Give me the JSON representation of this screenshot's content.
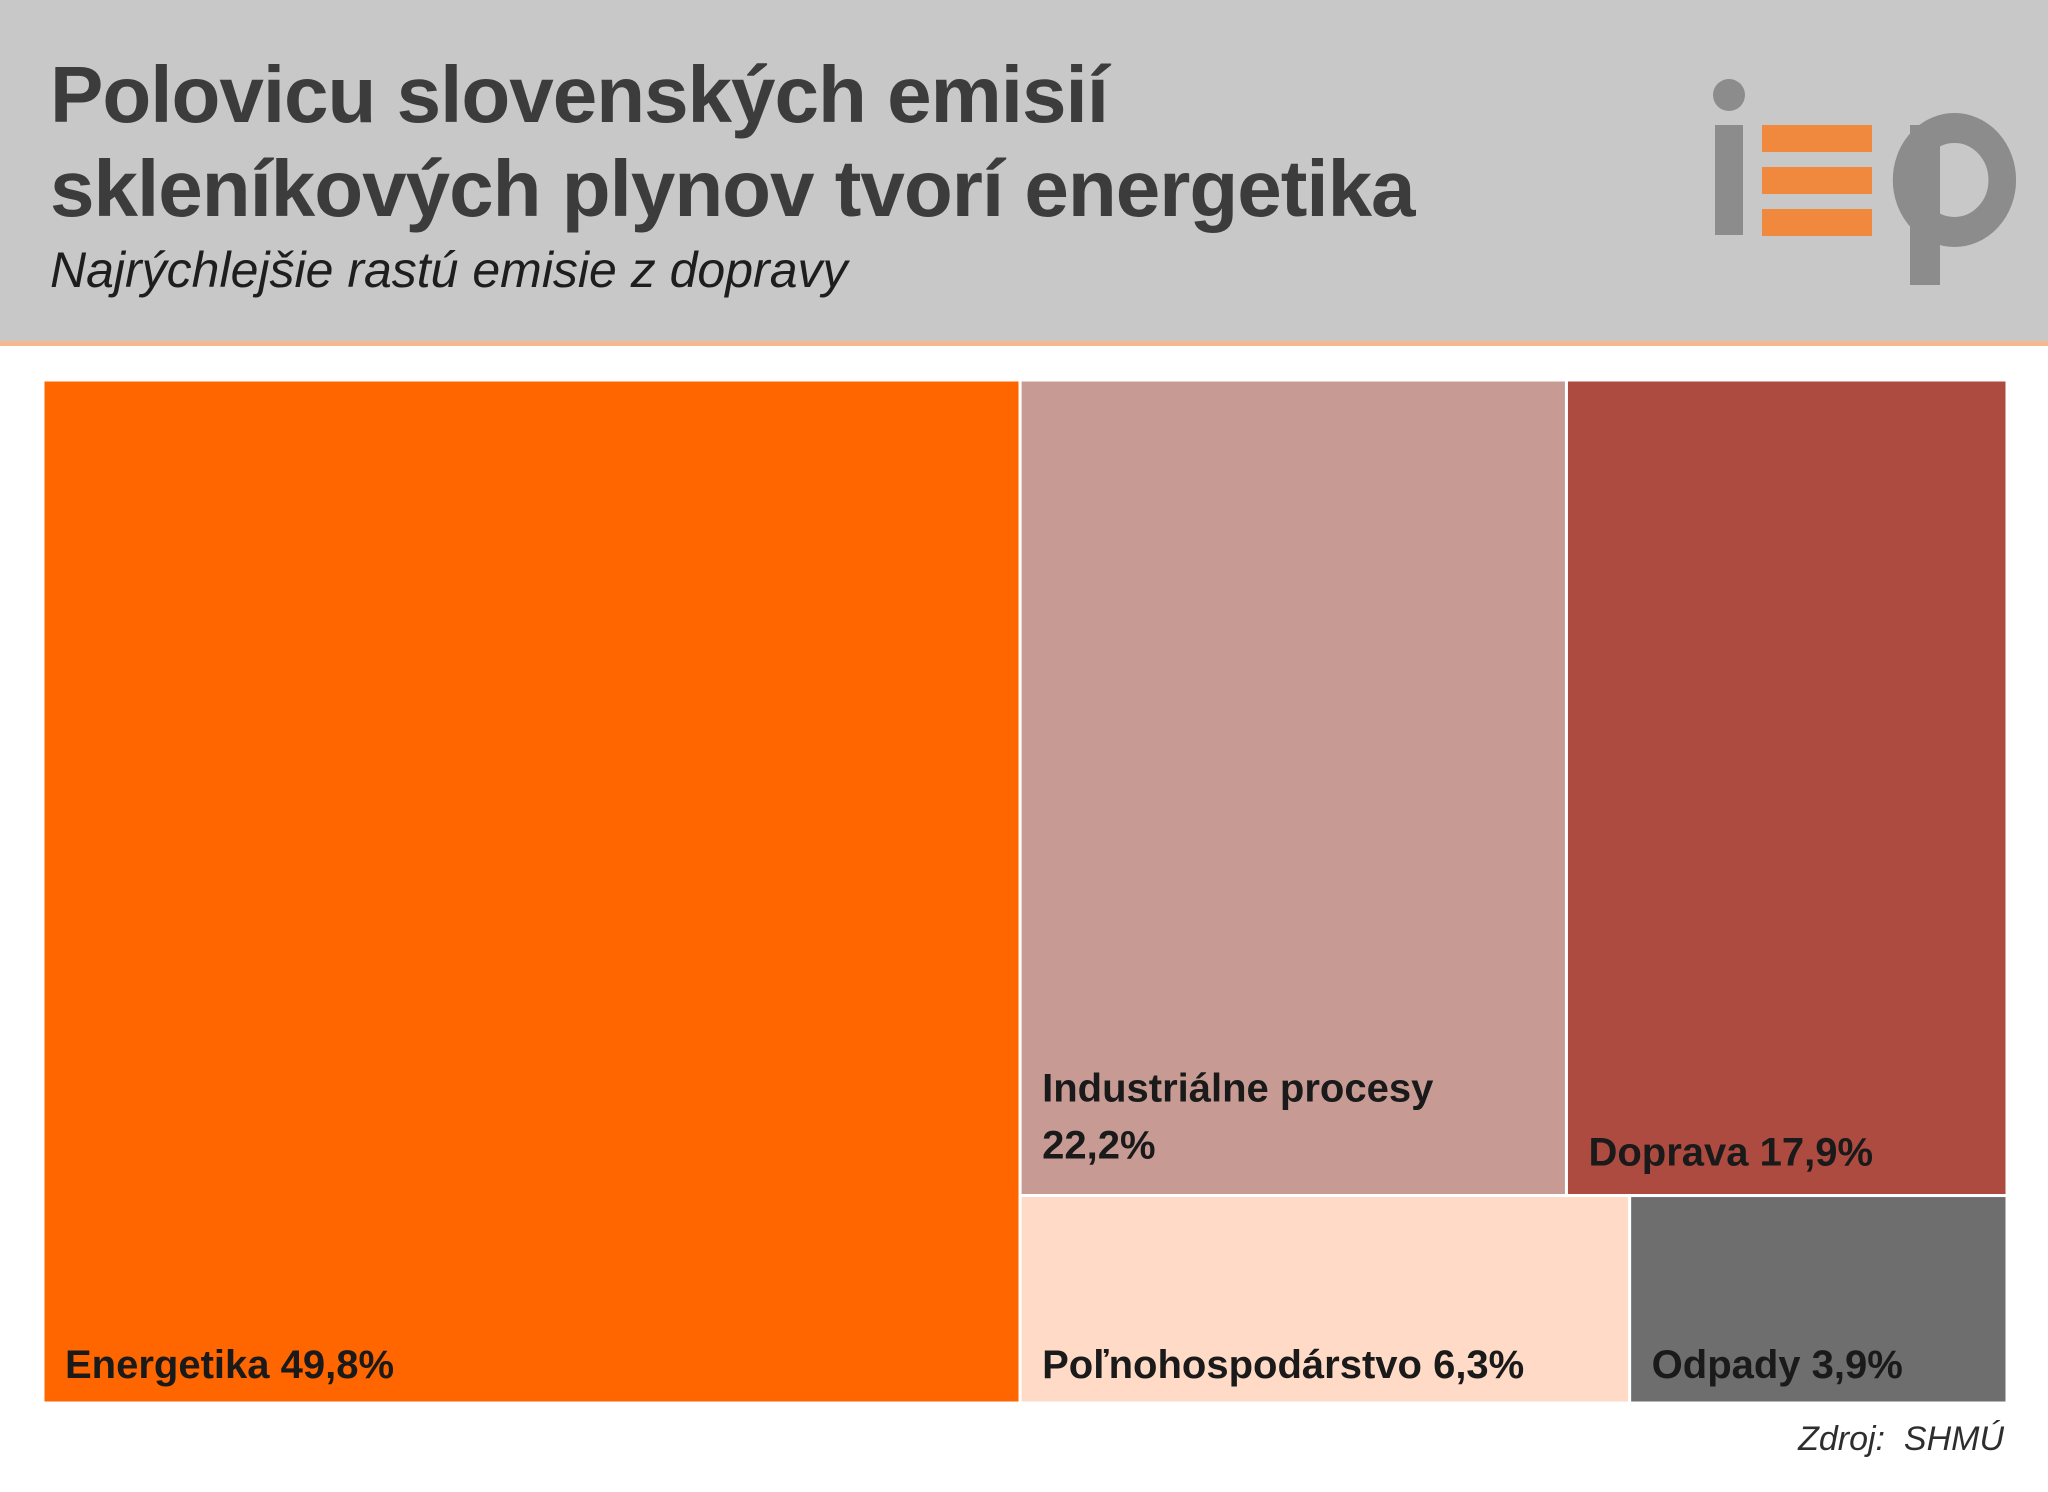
{
  "title": "Polovicu slovenských emisií skleníkových plynov tvorí energetika",
  "subtitle": "Najrýchlejšie rastú emisie z dopravy",
  "logo": {
    "text": "iep",
    "colors": {
      "gray": "#8c8c8c",
      "orange": "#f0883e"
    }
  },
  "source": {
    "label": "Zdroj:",
    "value": "SHMÚ"
  },
  "chart_data": {
    "type": "treemap",
    "unit": "%",
    "categories": [
      "Energetika",
      "Industriálne procesy",
      "Doprava",
      "Poľnohospodárstvo",
      "Odpady"
    ],
    "values": [
      49.8,
      22.2,
      17.9,
      6.3,
      3.9
    ],
    "labels": [
      "Energetika 49,8%",
      "Industriálne procesy 22,2%",
      "Doprava 17,9%",
      "Poľnohospodárstvo 6,3%",
      "Odpady 3,9%"
    ],
    "colors": [
      "#ff6600",
      "#c79b94",
      "#ad4b41",
      "#ffdac6",
      "#6e6e6e"
    ],
    "label_color": "#1a1a1a"
  }
}
